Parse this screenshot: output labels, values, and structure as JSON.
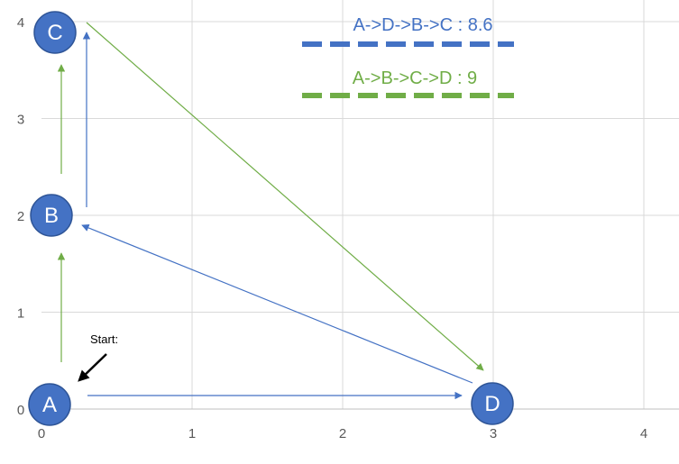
{
  "axes": {
    "x_ticks": [
      "0",
      "1",
      "2",
      "3",
      "4"
    ],
    "y_ticks": [
      "0",
      "1",
      "2",
      "3",
      "4"
    ]
  },
  "nodes": [
    {
      "id": "A",
      "label": "A",
      "x": 0,
      "y": 0
    },
    {
      "id": "B",
      "label": "B",
      "x": 0,
      "y": 2
    },
    {
      "id": "C",
      "label": "C",
      "x": 0,
      "y": 4
    },
    {
      "id": "D",
      "label": "D",
      "x": 3,
      "y": 0
    }
  ],
  "routes": [
    {
      "text": "A->D->B->C : 8.6",
      "color": "#4472C4",
      "path": [
        "A",
        "D",
        "B",
        "C"
      ]
    },
    {
      "text": "A->B->C->D : 9",
      "color": "#70AD47",
      "path": [
        "A",
        "B",
        "C",
        "D"
      ]
    }
  ],
  "start_label": "Start:",
  "colors": {
    "node_fill": "#4472C4",
    "node_stroke": "#2F5597",
    "grid": "#D9D9D9",
    "blue": "#4472C4",
    "green": "#70AD47"
  }
}
